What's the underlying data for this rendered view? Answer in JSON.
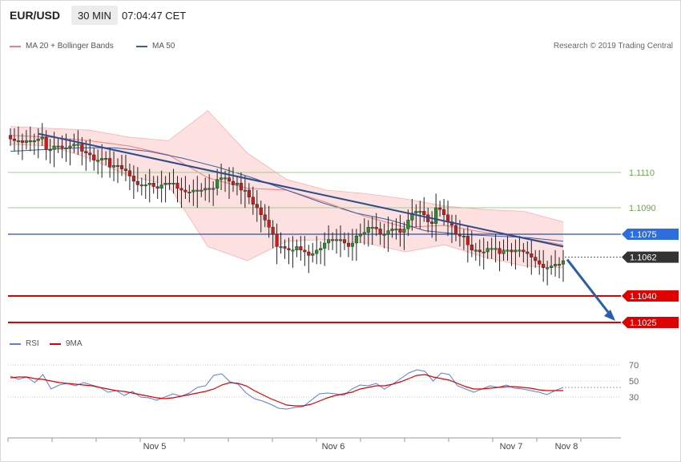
{
  "header": {
    "symbol": "EUR/USD",
    "timeframe": "30 MIN",
    "time": "07:04:47 CET"
  },
  "legend": {
    "bb_label": "MA 20 + Bollinger Bands",
    "ma50_label": "MA 50",
    "bb_color": "#f08080",
    "ma50_color": "#3a5f9e"
  },
  "credit": "Research © 2019 Trading Central",
  "rsi_legend": {
    "rsi_label": "RSI",
    "ma_label": "9MA",
    "rsi_color": "#5b7ed8",
    "ma_color": "#e00000"
  },
  "x_labels": [
    "Nov 5",
    "Nov 6",
    "Nov 7",
    "Nov 8"
  ],
  "price_labels": [
    {
      "text": "1.1110",
      "type": "green"
    },
    {
      "text": "1.1090",
      "type": "green"
    },
    {
      "text": "1.1075",
      "type": "blue"
    },
    {
      "text": "1.1062",
      "type": "dark"
    },
    {
      "text": "1.1040",
      "type": "red"
    },
    {
      "text": "1.1025",
      "type": "red"
    }
  ],
  "rsi_ticks": [
    "70",
    "50",
    "30"
  ],
  "chart_data": [
    {
      "type": "candlestick",
      "title": "EUR/USD 30 MIN",
      "levels": {
        "resistance_green": [
          1.111,
          1.109
        ],
        "pivot_blue": 1.1075,
        "last_price": 1.1062,
        "support_red": [
          1.104,
          1.1025
        ]
      },
      "ylim": [
        1.1018,
        1.1138
      ],
      "x_ticks": [
        "Nov 5",
        "Nov 6",
        "Nov 7",
        "Nov 8"
      ],
      "candle_closes": [
        1.1129,
        1.1128,
        1.1128,
        1.1127,
        1.1128,
        1.1128,
        1.1128,
        1.1129,
        1.113,
        1.1123,
        1.1123,
        1.1125,
        1.1125,
        1.1124,
        1.1124,
        1.1125,
        1.1126,
        1.1126,
        1.1122,
        1.1121,
        1.112,
        1.1117,
        1.1117,
        1.1118,
        1.1118,
        1.1113,
        1.1114,
        1.1114,
        1.1112,
        1.1111,
        1.1108,
        1.1105,
        1.1103,
        1.1103,
        1.1103,
        1.1104,
        1.1102,
        1.1101,
        1.1103,
        1.1104,
        1.1104,
        1.1104,
        1.1101,
        1.11,
        1.1099,
        1.1099,
        1.11,
        1.11,
        1.11,
        1.1101,
        1.1101,
        1.1101,
        1.1106,
        1.1107,
        1.1107,
        1.1105,
        1.1103,
        1.1104,
        1.11,
        1.11,
        1.1096,
        1.1092,
        1.109,
        1.1086,
        1.1083,
        1.1079,
        1.1075,
        1.1068,
        1.1068,
        1.1067,
        1.1066,
        1.1066,
        1.1068,
        1.1066,
        1.1065,
        1.1063,
        1.1064,
        1.1066,
        1.1067,
        1.107,
        1.1072,
        1.1072,
        1.1072,
        1.1072,
        1.107,
        1.1068,
        1.107,
        1.1074,
        1.1075,
        1.1076,
        1.1079,
        1.1079,
        1.1078,
        1.1075,
        1.1075,
        1.1077,
        1.1078,
        1.1078,
        1.1076,
        1.1078,
        1.1083,
        1.1087,
        1.1088,
        1.1088,
        1.1086,
        1.1082,
        1.1081,
        1.109,
        1.1089,
        1.1086,
        1.1082,
        1.108,
        1.1075,
        1.1074,
        1.1074,
        1.1069,
        1.1066,
        1.1066,
        1.1065,
        1.1065,
        1.1067,
        1.1067,
        1.1067,
        1.1064,
        1.1066,
        1.1066,
        1.1065,
        1.1066,
        1.1066,
        1.1065,
        1.1064,
        1.1062,
        1.106,
        1.1058,
        1.1056,
        1.1056,
        1.1057,
        1.1058,
        1.1058,
        1.106
      ],
      "bollinger": {
        "upper": [
          1.1136,
          1.1135,
          1.1134,
          1.113,
          1.1128,
          1.1145,
          1.1121,
          1.1106,
          1.11,
          1.1098,
          1.1095,
          1.1091,
          1.1089,
          1.1088,
          1.1082
        ],
        "middle": [
          1.1131,
          1.113,
          1.1128,
          1.1125,
          1.112,
          1.1107,
          1.1101,
          1.11,
          1.1093,
          1.1085,
          1.1079,
          1.108,
          1.1076,
          1.1073,
          1.1069
        ],
        "lower": [
          1.1126,
          1.1125,
          1.1118,
          1.1108,
          1.1103,
          1.1068,
          1.106,
          1.1071,
          1.1072,
          1.107,
          1.1065,
          1.1069,
          1.1062,
          1.1057,
          1.1056
        ]
      },
      "ma50": [
        1.1122,
        1.1123,
        1.1124,
        1.1124,
        1.1122,
        1.1118,
        1.1113,
        1.1107,
        1.11,
        1.1093,
        1.1087,
        1.1083,
        1.1077,
        1.1075,
        1.1074,
        1.1073,
        1.1071
      ],
      "trendline": {
        "start": 1.1132,
        "end": 1.1068
      },
      "forecast_arrow": {
        "from": 1.1062,
        "to": 1.1025
      }
    },
    {
      "type": "line",
      "title": "RSI",
      "ylim": [
        10,
        80
      ],
      "y_ticks": [
        70,
        50,
        30
      ],
      "series": [
        {
          "name": "RSI",
          "values": [
            56,
            52,
            55,
            48,
            58,
            40,
            45,
            47,
            44,
            48,
            45,
            42,
            36,
            38,
            32,
            37,
            30,
            29,
            26,
            30,
            34,
            31,
            35,
            42,
            44,
            57,
            59,
            49,
            46,
            35,
            28,
            25,
            21,
            16,
            15,
            17,
            18,
            26,
            34,
            35,
            34,
            32,
            40,
            45,
            44,
            47,
            40,
            46,
            53,
            60,
            64,
            62,
            50,
            60,
            58,
            44,
            40,
            36,
            40,
            44,
            42,
            45,
            41,
            40,
            38,
            36,
            33,
            38,
            42
          ]
        },
        {
          "name": "9MA",
          "values": [
            54,
            55,
            55,
            53,
            52,
            50,
            48,
            47,
            46,
            45,
            44,
            42,
            40,
            38,
            37,
            35,
            33,
            31,
            29,
            28,
            29,
            31,
            33,
            35,
            37,
            40,
            45,
            48,
            47,
            44,
            38,
            33,
            28,
            24,
            20,
            19,
            19,
            21,
            25,
            29,
            32,
            34,
            36,
            40,
            42,
            44,
            44,
            46,
            49,
            53,
            57,
            58,
            55,
            53,
            51,
            47,
            43,
            40,
            40,
            41,
            42,
            43,
            43,
            42,
            41,
            39,
            38,
            38,
            38
          ]
        }
      ]
    }
  ]
}
